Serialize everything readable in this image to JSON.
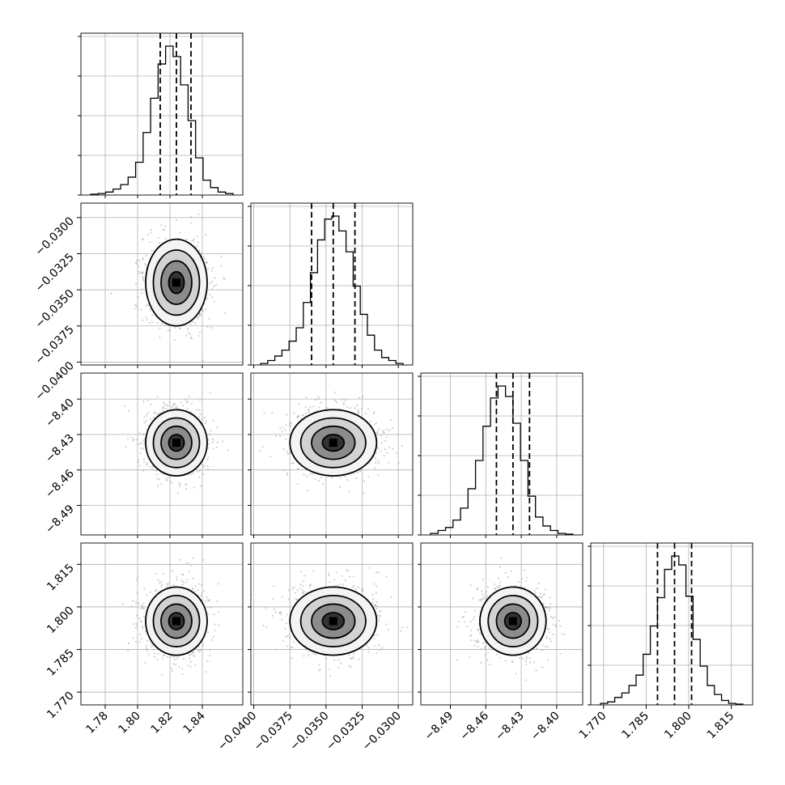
{
  "chart_data": {
    "type": "corner",
    "grid": true,
    "parameters": [
      {
        "index": 0,
        "range": [
          1.765,
          1.865
        ],
        "ticks": [
          1.78,
          1.8,
          1.82,
          1.84
        ],
        "tick_labels": [
          "1.78",
          "1.80",
          "1.82",
          "1.84"
        ],
        "median": 1.824,
        "q16": 1.814,
        "q84": 1.833,
        "sigma": 0.0095,
        "hist_peak": 1.0
      },
      {
        "index": 1,
        "range": [
          -0.0402,
          -0.029
        ],
        "ticks": [
          -0.04,
          -0.0375,
          -0.035,
          -0.0325,
          -0.03
        ],
        "tick_labels": [
          "−0.0400",
          "−0.0375",
          "−0.0350",
          "−0.0325",
          "−0.0300"
        ],
        "median": -0.0345,
        "q16": -0.036,
        "q84": -0.033,
        "sigma": 0.0015,
        "hist_peak": 1.0
      },
      {
        "index": 2,
        "range": [
          -8.515,
          -8.378
        ],
        "ticks": [
          -8.49,
          -8.46,
          -8.43,
          -8.4
        ],
        "tick_labels": [
          "−8.49",
          "−8.46",
          "−8.43",
          "−8.40"
        ],
        "median": -8.437,
        "q16": -8.451,
        "q84": -8.423,
        "sigma": 0.014,
        "hist_peak": 1.0
      },
      {
        "index": 3,
        "range": [
          1.7655,
          1.8225
        ],
        "ticks": [
          1.77,
          1.785,
          1.8,
          1.815
        ],
        "tick_labels": [
          "1.770",
          "1.785",
          "1.800",
          "1.815"
        ],
        "median": 1.795,
        "q16": 1.789,
        "q84": 1.801,
        "sigma": 0.006,
        "hist_peak": 1.0
      }
    ],
    "histograms": [
      {
        "param": 0,
        "counts": [
          0.005,
          0.01,
          0.02,
          0.04,
          0.07,
          0.12,
          0.22,
          0.42,
          0.65,
          0.88,
          1.0,
          0.93,
          0.74,
          0.5,
          0.25,
          0.1,
          0.05,
          0.02,
          0.01
        ]
      },
      {
        "param": 1,
        "counts": [
          0.01,
          0.03,
          0.06,
          0.1,
          0.16,
          0.25,
          0.42,
          0.62,
          0.84,
          0.98,
          1.0,
          0.9,
          0.76,
          0.53,
          0.34,
          0.2,
          0.1,
          0.05,
          0.03,
          0.01
        ]
      },
      {
        "param": 2,
        "counts": [
          0.01,
          0.03,
          0.05,
          0.1,
          0.18,
          0.31,
          0.5,
          0.73,
          0.92,
          1.0,
          0.93,
          0.75,
          0.5,
          0.26,
          0.12,
          0.06,
          0.03,
          0.01,
          0.005
        ]
      },
      {
        "param": 3,
        "counts": [
          0.01,
          0.02,
          0.05,
          0.08,
          0.13,
          0.2,
          0.34,
          0.53,
          0.72,
          0.91,
          1.0,
          0.94,
          0.73,
          0.44,
          0.26,
          0.13,
          0.07,
          0.03,
          0.01,
          0.005
        ]
      }
    ],
    "pairs": [
      {
        "x": 0,
        "y": 1
      },
      {
        "x": 0,
        "y": 2
      },
      {
        "x": 1,
        "y": 2
      },
      {
        "x": 0,
        "y": 3
      },
      {
        "x": 1,
        "y": 3
      },
      {
        "x": 2,
        "y": 3
      }
    ],
    "contour_levels_sigma": [
      0.5,
      1.0,
      1.5,
      2.0
    ],
    "colors": {
      "hist": "#000000",
      "points": "#9a9a9a",
      "density_light": "#f4f4f4",
      "density_dark": "#333333"
    }
  }
}
